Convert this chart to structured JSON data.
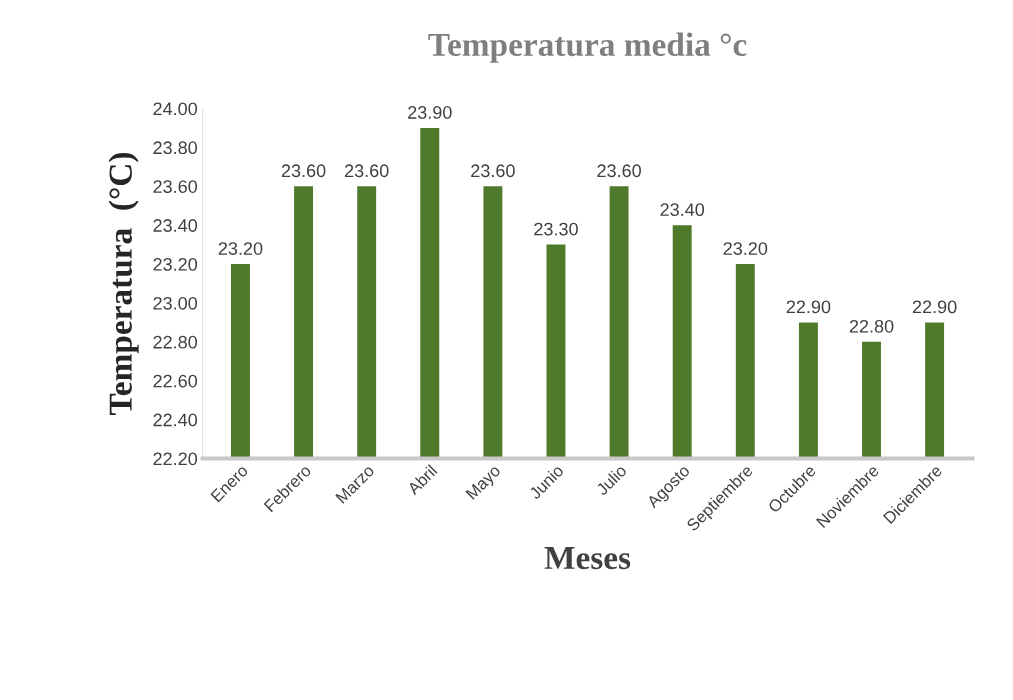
{
  "chart_data": {
    "type": "bar",
    "title": "Temperatura media °c",
    "xlabel": "Meses",
    "ylabel": "Temperatura  (°C)",
    "categories": [
      "Enero",
      "Febrero",
      "Marzo",
      "Abril",
      "Mayo",
      "Junio",
      "Julio",
      "Agosto",
      "Septiembre",
      "Octubre",
      "Noviembre",
      "Diciembre"
    ],
    "values": [
      23.2,
      23.6,
      23.6,
      23.9,
      23.6,
      23.3,
      23.6,
      23.4,
      23.2,
      22.9,
      22.8,
      22.9
    ],
    "value_labels": [
      "23.20",
      "23.60",
      "23.60",
      "23.90",
      "23.60",
      "23.30",
      "23.60",
      "23.40",
      "23.20",
      "22.90",
      "22.80",
      "22.90"
    ],
    "color": "#4f7a2c",
    "ylim": [
      22.2,
      24.0
    ],
    "yticks": [
      {
        "value": 22.2,
        "label": "22.20"
      },
      {
        "value": 22.4,
        "label": "22.40"
      },
      {
        "value": 22.6,
        "label": "22.60"
      },
      {
        "value": 22.8,
        "label": "22.80"
      },
      {
        "value": 23.0,
        "label": "23.00"
      },
      {
        "value": 23.2,
        "label": "23.20"
      },
      {
        "value": 23.4,
        "label": "23.40"
      },
      {
        "value": 23.6,
        "label": "23.60"
      },
      {
        "value": 23.8,
        "label": "23.80"
      },
      {
        "value": 24.0,
        "label": "24.00"
      }
    ],
    "grid": false
  }
}
